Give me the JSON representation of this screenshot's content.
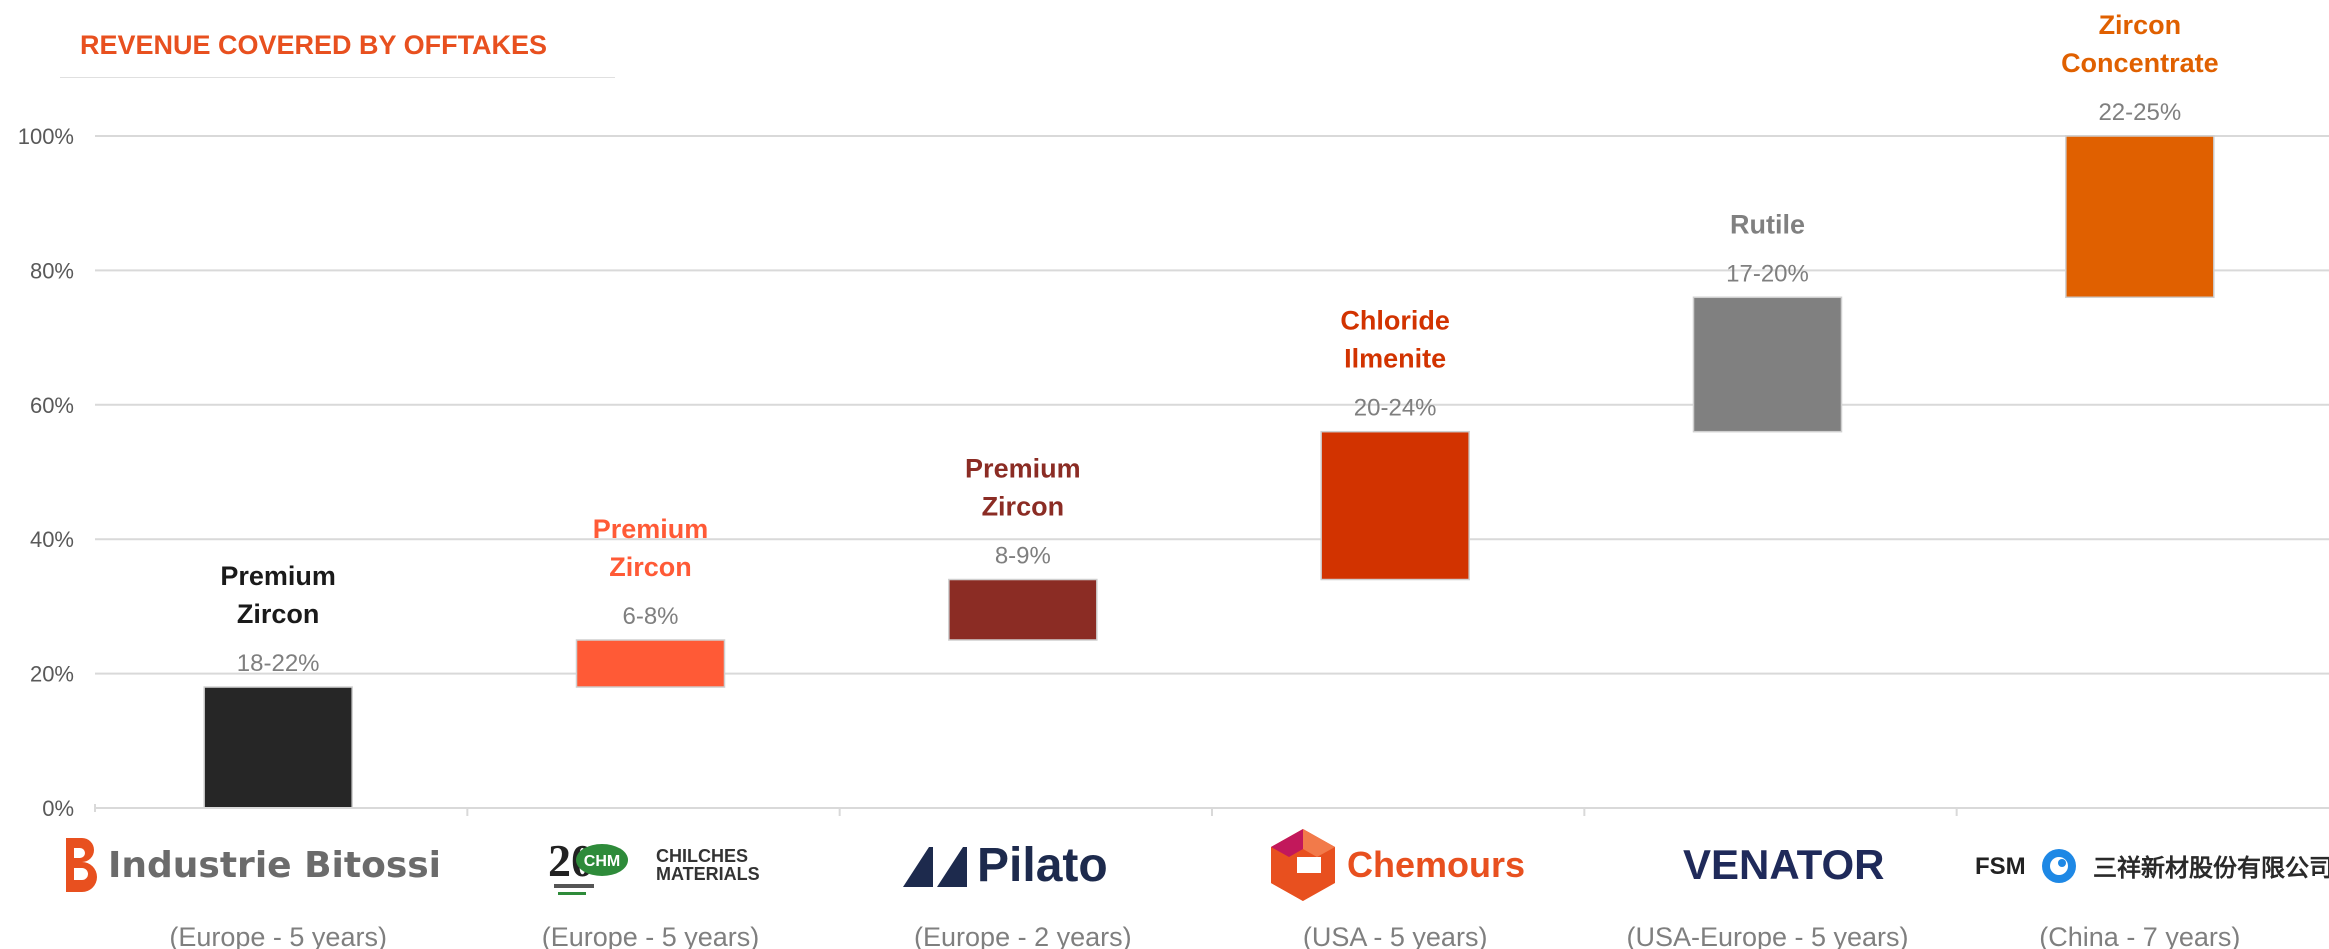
{
  "section_title": "REVENUE COVERED BY OFFTAKES",
  "chart_data": {
    "type": "waterfall",
    "title": "",
    "ylim": [
      0,
      100
    ],
    "yticks": [
      "0%",
      "20%",
      "40%",
      "60%",
      "80%",
      "100%"
    ],
    "grid": true,
    "bars": [
      {
        "name_lines": [
          "Premium",
          "Zircon"
        ],
        "range": "18-22%",
        "start": 0,
        "end": 18,
        "color": "#262626",
        "label_color": "#1a1a1a"
      },
      {
        "name_lines": [
          "Premium",
          "Zircon"
        ],
        "range": "6-8%",
        "start": 18,
        "end": 25,
        "color": "#ff5a36",
        "label_color": "#ff5a36"
      },
      {
        "name_lines": [
          "Premium",
          "Zircon"
        ],
        "range": "8-9%",
        "start": 25,
        "end": 34,
        "color": "#8b2c24",
        "label_color": "#8b2c24"
      },
      {
        "name_lines": [
          "Chloride",
          "Ilmenite"
        ],
        "range": "20-24%",
        "start": 34,
        "end": 56,
        "color": "#d23300",
        "label_color": "#d23300"
      },
      {
        "name_lines": [
          "Rutile"
        ],
        "range": "17-20%",
        "start": 56,
        "end": 76,
        "color": "#808080",
        "label_color": "#808080"
      },
      {
        "name_lines": [
          "Zircon",
          "Concentrate"
        ],
        "range": "22-25%",
        "start": 76,
        "end": 100,
        "color": "#e06000",
        "label_color": "#e06000"
      }
    ],
    "categories": [
      {
        "logo": "Industrie  Bitossi",
        "logo_icon": "b-letter-logo-icon",
        "desc": "(Europe - 5 years)"
      },
      {
        "logo": "CHILCHES MATERIALS",
        "logo_icon": "chm-20-anniversary-logo-icon",
        "desc": "(Europe - 5 years)"
      },
      {
        "logo": "Pilato",
        "logo_icon": "pilato-chevrons-logo-icon",
        "desc": "(Europe - 2 years)"
      },
      {
        "logo": "Chemours",
        "logo_icon": "chemours-c-logo-icon",
        "desc": "(USA - 5 years)"
      },
      {
        "logo": "VENATOR",
        "logo_icon": "",
        "desc": "(USA-Europe - 5 years)"
      },
      {
        "logo": "三祥新材股份有限公司",
        "logo_icon": "fsm-logo-icon",
        "desc": "(China - 7 years)"
      }
    ]
  }
}
